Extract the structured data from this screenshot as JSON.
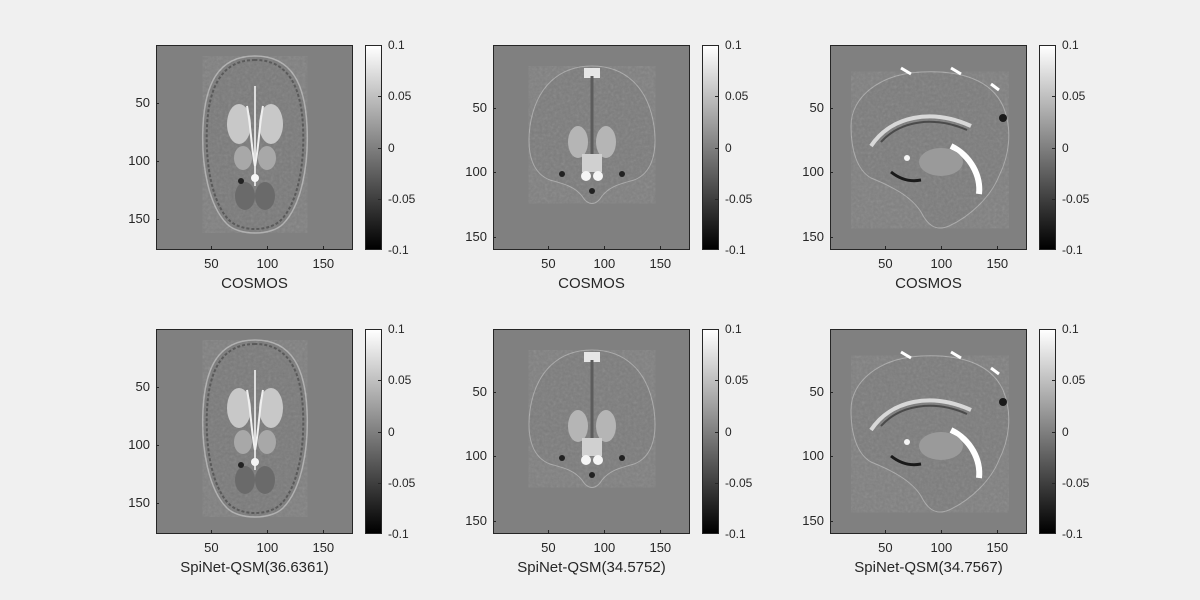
{
  "panels": [
    {
      "id": "r1c1",
      "view": "axial",
      "title": "COSMOS"
    },
    {
      "id": "r1c2",
      "view": "coronal",
      "title": "COSMOS"
    },
    {
      "id": "r1c3",
      "view": "sagittal",
      "title": "COSMOS"
    },
    {
      "id": "r2c1",
      "view": "axial",
      "title": "SpiNet-QSM(36.6361)"
    },
    {
      "id": "r2c2",
      "view": "coronal",
      "title": "SpiNet-QSM(34.5752)"
    },
    {
      "id": "r2c3",
      "view": "sagittal",
      "title": "SpiNet-QSM(34.7567)"
    }
  ],
  "axis_ticks": {
    "axial": {
      "y": [
        "50",
        "100",
        "150"
      ],
      "x": [
        "50",
        "100",
        "150"
      ]
    },
    "coronal": {
      "y": [
        "50",
        "100",
        "150"
      ],
      "x": [
        "50",
        "100",
        "150"
      ]
    },
    "sagittal": {
      "y": [
        "50",
        "100",
        "150"
      ],
      "x": [
        "50",
        "100",
        "150"
      ]
    }
  },
  "colorbar": {
    "ticks": [
      "0.1",
      "0.05",
      "0",
      "-0.05",
      "-0.1"
    ],
    "colormap": "gray"
  },
  "colors": {
    "background": "#f0f0f0",
    "image_background": "#808080"
  }
}
